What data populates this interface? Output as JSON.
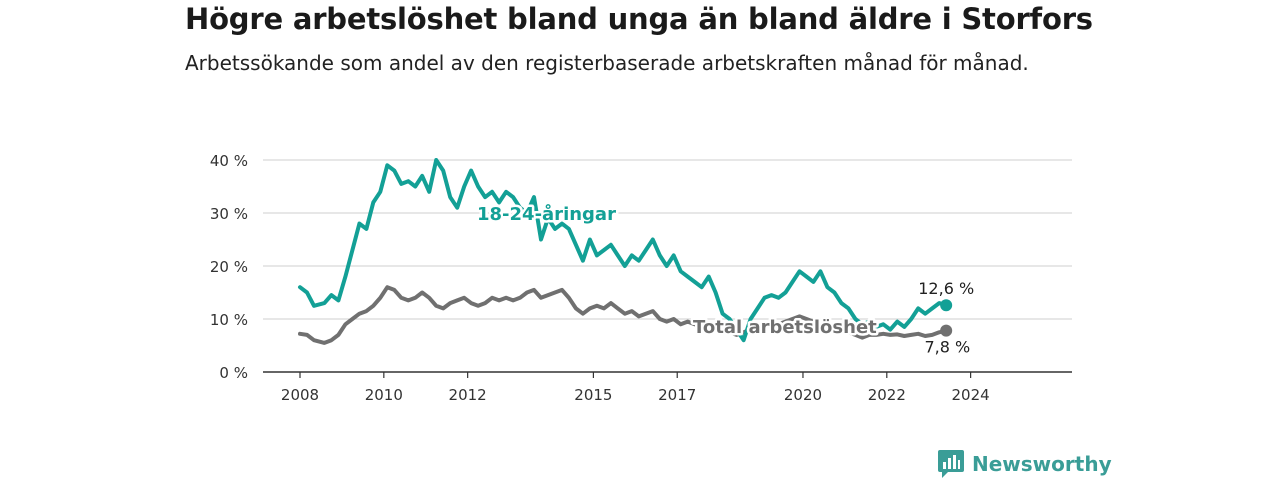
{
  "title": "Högre arbetslöshet bland unga än bland äldre i Storfors",
  "subtitle": "Arbetssökande som andel av den registerbaserade arbetskraften månad för månad.",
  "logo_text": "Newsworthy",
  "colors": {
    "youth": "#13a096",
    "total": "#707070",
    "grid": "#cfcfcf",
    "axis": "#333333",
    "logo": "#3a9d97"
  },
  "chart_data": {
    "type": "line",
    "x_ticks": [
      "2008",
      "2010",
      "2012",
      "2015",
      "2017",
      "2020",
      "2022",
      "2024"
    ],
    "y_ticks": [
      "0 %",
      "10 %",
      "20 %",
      "30 %",
      "40 %"
    ],
    "ylim": [
      0,
      40
    ],
    "xlim": [
      "2008-01",
      "2025-06"
    ],
    "grid": true,
    "series": [
      {
        "name": "18-24-åringar",
        "end_label": "12,6 %",
        "points": [
          [
            "2008-01",
            16
          ],
          [
            "2008-03",
            15
          ],
          [
            "2008-05",
            12.5
          ],
          [
            "2008-08",
            13
          ],
          [
            "2008-10",
            14.5
          ],
          [
            "2008-12",
            13.5
          ],
          [
            "2009-02",
            18
          ],
          [
            "2009-04",
            23
          ],
          [
            "2009-06",
            28
          ],
          [
            "2009-08",
            27
          ],
          [
            "2009-10",
            32
          ],
          [
            "2009-12",
            34
          ],
          [
            "2010-02",
            39
          ],
          [
            "2010-04",
            38
          ],
          [
            "2010-06",
            35.5
          ],
          [
            "2010-08",
            36
          ],
          [
            "2010-10",
            35
          ],
          [
            "2010-12",
            37
          ],
          [
            "2011-02",
            34
          ],
          [
            "2011-04",
            40
          ],
          [
            "2011-06",
            38
          ],
          [
            "2011-08",
            33
          ],
          [
            "2011-10",
            31
          ],
          [
            "2011-12",
            35
          ],
          [
            "2012-02",
            38
          ],
          [
            "2012-04",
            35
          ],
          [
            "2012-06",
            33
          ],
          [
            "2012-08",
            34
          ],
          [
            "2012-10",
            32
          ],
          [
            "2012-12",
            34
          ],
          [
            "2013-02",
            33
          ],
          [
            "2013-04",
            31
          ],
          [
            "2013-06",
            30
          ],
          [
            "2013-08",
            33
          ],
          [
            "2013-10",
            25
          ],
          [
            "2013-12",
            29
          ],
          [
            "2014-02",
            27
          ],
          [
            "2014-04",
            28
          ],
          [
            "2014-06",
            27
          ],
          [
            "2014-08",
            24
          ],
          [
            "2014-10",
            21
          ],
          [
            "2014-12",
            25
          ],
          [
            "2015-02",
            22
          ],
          [
            "2015-04",
            23
          ],
          [
            "2015-06",
            24
          ],
          [
            "2015-08",
            22
          ],
          [
            "2015-10",
            20
          ],
          [
            "2015-12",
            22
          ],
          [
            "2016-02",
            21
          ],
          [
            "2016-04",
            23
          ],
          [
            "2016-06",
            25
          ],
          [
            "2016-08",
            22
          ],
          [
            "2016-10",
            20
          ],
          [
            "2016-12",
            22
          ],
          [
            "2017-02",
            19
          ],
          [
            "2017-04",
            18
          ],
          [
            "2017-06",
            17
          ],
          [
            "2017-08",
            16
          ],
          [
            "2017-10",
            18
          ],
          [
            "2017-12",
            15
          ],
          [
            "2018-02",
            11
          ],
          [
            "2018-04",
            10
          ],
          [
            "2018-06",
            8
          ],
          [
            "2018-08",
            6
          ],
          [
            "2018-10",
            10
          ],
          [
            "2018-12",
            12
          ],
          [
            "2019-02",
            14
          ],
          [
            "2019-04",
            14.5
          ],
          [
            "2019-06",
            14
          ],
          [
            "2019-08",
            15
          ],
          [
            "2019-10",
            17
          ],
          [
            "2019-12",
            19
          ],
          [
            "2020-02",
            18
          ],
          [
            "2020-04",
            17
          ],
          [
            "2020-06",
            19
          ],
          [
            "2020-08",
            16
          ],
          [
            "2020-10",
            15
          ],
          [
            "2020-12",
            13
          ],
          [
            "2021-02",
            12
          ],
          [
            "2021-04",
            10
          ],
          [
            "2021-06",
            9
          ],
          [
            "2021-08",
            9.5
          ],
          [
            "2021-10",
            8.5
          ],
          [
            "2021-12",
            9
          ],
          [
            "2022-02",
            8
          ],
          [
            "2022-04",
            9.5
          ],
          [
            "2022-06",
            8.5
          ],
          [
            "2022-08",
            10
          ],
          [
            "2022-10",
            12
          ],
          [
            "2022-12",
            11
          ],
          [
            "2023-02",
            12
          ],
          [
            "2023-04",
            13
          ],
          [
            "2023-06",
            12.6
          ]
        ]
      },
      {
        "name": "Total arbetslöshet",
        "end_label": "7,8 %",
        "points": [
          [
            "2008-01",
            7.2
          ],
          [
            "2008-03",
            7
          ],
          [
            "2008-05",
            6
          ],
          [
            "2008-08",
            5.5
          ],
          [
            "2008-10",
            6
          ],
          [
            "2008-12",
            7
          ],
          [
            "2009-02",
            9
          ],
          [
            "2009-04",
            10
          ],
          [
            "2009-06",
            11
          ],
          [
            "2009-08",
            11.5
          ],
          [
            "2009-10",
            12.5
          ],
          [
            "2009-12",
            14
          ],
          [
            "2010-02",
            16
          ],
          [
            "2010-04",
            15.5
          ],
          [
            "2010-06",
            14
          ],
          [
            "2010-08",
            13.5
          ],
          [
            "2010-10",
            14
          ],
          [
            "2010-12",
            15
          ],
          [
            "2011-02",
            14
          ],
          [
            "2011-04",
            12.5
          ],
          [
            "2011-06",
            12
          ],
          [
            "2011-08",
            13
          ],
          [
            "2011-10",
            13.5
          ],
          [
            "2011-12",
            14
          ],
          [
            "2012-02",
            13
          ],
          [
            "2012-04",
            12.5
          ],
          [
            "2012-06",
            13
          ],
          [
            "2012-08",
            14
          ],
          [
            "2012-10",
            13.5
          ],
          [
            "2012-12",
            14
          ],
          [
            "2013-02",
            13.5
          ],
          [
            "2013-04",
            14
          ],
          [
            "2013-06",
            15
          ],
          [
            "2013-08",
            15.5
          ],
          [
            "2013-10",
            14
          ],
          [
            "2013-12",
            14.5
          ],
          [
            "2014-02",
            15
          ],
          [
            "2014-04",
            15.5
          ],
          [
            "2014-06",
            14
          ],
          [
            "2014-08",
            12
          ],
          [
            "2014-10",
            11
          ],
          [
            "2014-12",
            12
          ],
          [
            "2015-02",
            12.5
          ],
          [
            "2015-04",
            12
          ],
          [
            "2015-06",
            13
          ],
          [
            "2015-08",
            12
          ],
          [
            "2015-10",
            11
          ],
          [
            "2015-12",
            11.5
          ],
          [
            "2016-02",
            10.5
          ],
          [
            "2016-04",
            11
          ],
          [
            "2016-06",
            11.5
          ],
          [
            "2016-08",
            10
          ],
          [
            "2016-10",
            9.5
          ],
          [
            "2016-12",
            10
          ],
          [
            "2017-02",
            9
          ],
          [
            "2017-04",
            9.5
          ],
          [
            "2017-06",
            9
          ],
          [
            "2017-08",
            8.5
          ],
          [
            "2017-10",
            9
          ],
          [
            "2017-12",
            8.5
          ],
          [
            "2018-02",
            8
          ],
          [
            "2018-04",
            7.5
          ],
          [
            "2018-06",
            7
          ],
          [
            "2018-08",
            7.5
          ],
          [
            "2018-10",
            8
          ],
          [
            "2018-12",
            8.5
          ],
          [
            "2019-02",
            9
          ],
          [
            "2019-04",
            9.5
          ],
          [
            "2019-06",
            9
          ],
          [
            "2019-08",
            9.5
          ],
          [
            "2019-10",
            10
          ],
          [
            "2019-12",
            10.5
          ],
          [
            "2020-02",
            10
          ],
          [
            "2020-04",
            9.5
          ],
          [
            "2020-06",
            9
          ],
          [
            "2020-08",
            8.5
          ],
          [
            "2020-10",
            9
          ],
          [
            "2020-12",
            8.5
          ],
          [
            "2021-02",
            7.5
          ],
          [
            "2021-04",
            7
          ],
          [
            "2021-06",
            6.5
          ],
          [
            "2021-08",
            7
          ],
          [
            "2021-10",
            7
          ],
          [
            "2021-12",
            7.2
          ],
          [
            "2022-02",
            7
          ],
          [
            "2022-04",
            7.1
          ],
          [
            "2022-06",
            6.8
          ],
          [
            "2022-08",
            7
          ],
          [
            "2022-10",
            7.2
          ],
          [
            "2022-12",
            6.8
          ],
          [
            "2023-02",
            7
          ],
          [
            "2023-04",
            7.5
          ],
          [
            "2023-06",
            7.8
          ]
        ]
      }
    ]
  }
}
